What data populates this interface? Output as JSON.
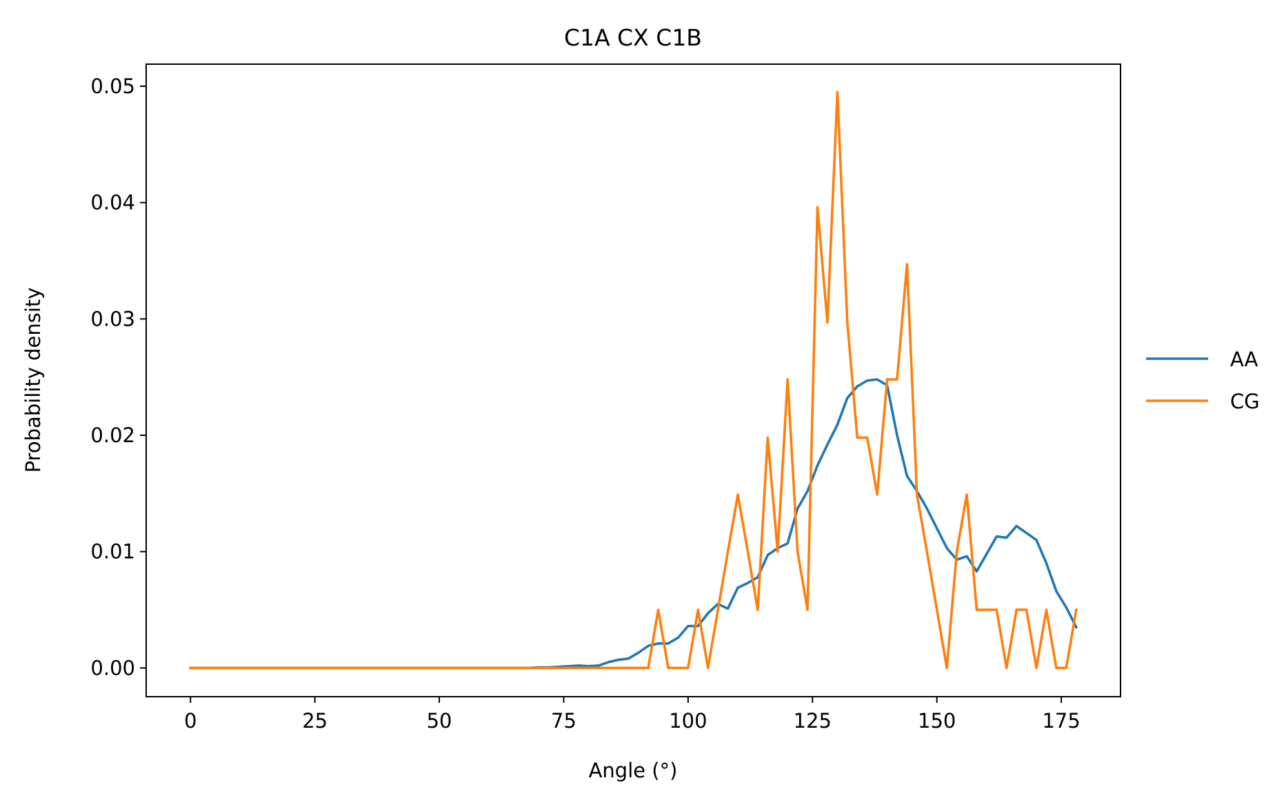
{
  "chart_data": {
    "type": "line",
    "title": "C1A CX C1B",
    "xlabel": "Angle (°)",
    "ylabel": "Probability density",
    "xlim": [
      -8.9,
      186.9
    ],
    "ylim": [
      -0.00247,
      0.0519
    ],
    "xticks": [
      0,
      25,
      50,
      75,
      100,
      125,
      150,
      175
    ],
    "yticks": [
      0.0,
      0.01,
      0.02,
      0.03,
      0.04,
      0.05
    ],
    "ytick_labels": [
      "0.00",
      "0.01",
      "0.02",
      "0.03",
      "0.04",
      "0.05"
    ],
    "grid": false,
    "legend_position": "center-right outside",
    "x": [
      0,
      2,
      4,
      6,
      8,
      10,
      12,
      14,
      16,
      18,
      20,
      22,
      24,
      26,
      28,
      30,
      32,
      34,
      36,
      38,
      40,
      42,
      44,
      46,
      48,
      50,
      52,
      54,
      56,
      58,
      60,
      62,
      64,
      66,
      68,
      70,
      72,
      74,
      76,
      78,
      80,
      82,
      84,
      86,
      88,
      90,
      92,
      94,
      96,
      98,
      100,
      102,
      104,
      106,
      108,
      110,
      112,
      114,
      116,
      118,
      120,
      122,
      124,
      126,
      128,
      130,
      132,
      134,
      136,
      138,
      140,
      142,
      144,
      146,
      148,
      150,
      152,
      154,
      156,
      158,
      160,
      162,
      164,
      166,
      168,
      170,
      172,
      174,
      176,
      178
    ],
    "series": [
      {
        "name": "AA",
        "color": "#1f77b4",
        "values": [
          0,
          0,
          0,
          0,
          0,
          0,
          0,
          0,
          0,
          0,
          0,
          0,
          0,
          0,
          0,
          0,
          0,
          0,
          0,
          0,
          0,
          0,
          0,
          0,
          0,
          0,
          0,
          0,
          0,
          0,
          0,
          0,
          0,
          0,
          0,
          5e-05,
          5e-05,
          0.0001,
          0.00015,
          0.0002,
          0.00015,
          0.0002,
          0.0005,
          0.0007,
          0.0008,
          0.0013,
          0.0019,
          0.0021,
          0.0021,
          0.0026,
          0.0036,
          0.0036,
          0.0047,
          0.0055,
          0.0051,
          0.0069,
          0.0073,
          0.0078,
          0.0097,
          0.0103,
          0.0107,
          0.0137,
          0.0152,
          0.0174,
          0.0192,
          0.0209,
          0.0232,
          0.0242,
          0.0247,
          0.0248,
          0.0243,
          0.02,
          0.0165,
          0.0152,
          0.0137,
          0.012,
          0.0103,
          0.0093,
          0.0096,
          0.0083,
          0.0098,
          0.0113,
          0.0112,
          0.0122,
          0.0116,
          0.011,
          0.009,
          0.0066,
          0.0052,
          0.0035
        ]
      },
      {
        "name": "CG",
        "color": "#ff7f0e",
        "values": [
          0,
          0,
          0,
          0,
          0,
          0,
          0,
          0,
          0,
          0,
          0,
          0,
          0,
          0,
          0,
          0,
          0,
          0,
          0,
          0,
          0,
          0,
          0,
          0,
          0,
          0,
          0,
          0,
          0,
          0,
          0,
          0,
          0,
          0,
          0,
          0,
          0,
          0,
          0,
          0,
          0,
          0,
          0,
          0,
          0,
          0,
          0,
          0.005,
          0,
          0,
          0,
          0.005,
          0,
          0.005,
          0.01,
          0.0149,
          0.01,
          0.005,
          0.0198,
          0.01,
          0.0248,
          0.01,
          0.005,
          0.0396,
          0.0297,
          0.0495,
          0.0297,
          0.0198,
          0.0198,
          0.0149,
          0.0248,
          0.0248,
          0.0347,
          0.0149,
          0.01,
          0.005,
          0,
          0.01,
          0.0149,
          0.005,
          0.005,
          0.005,
          0,
          0.005,
          0.005,
          0,
          0.005,
          0,
          0,
          0.005
        ]
      }
    ]
  }
}
